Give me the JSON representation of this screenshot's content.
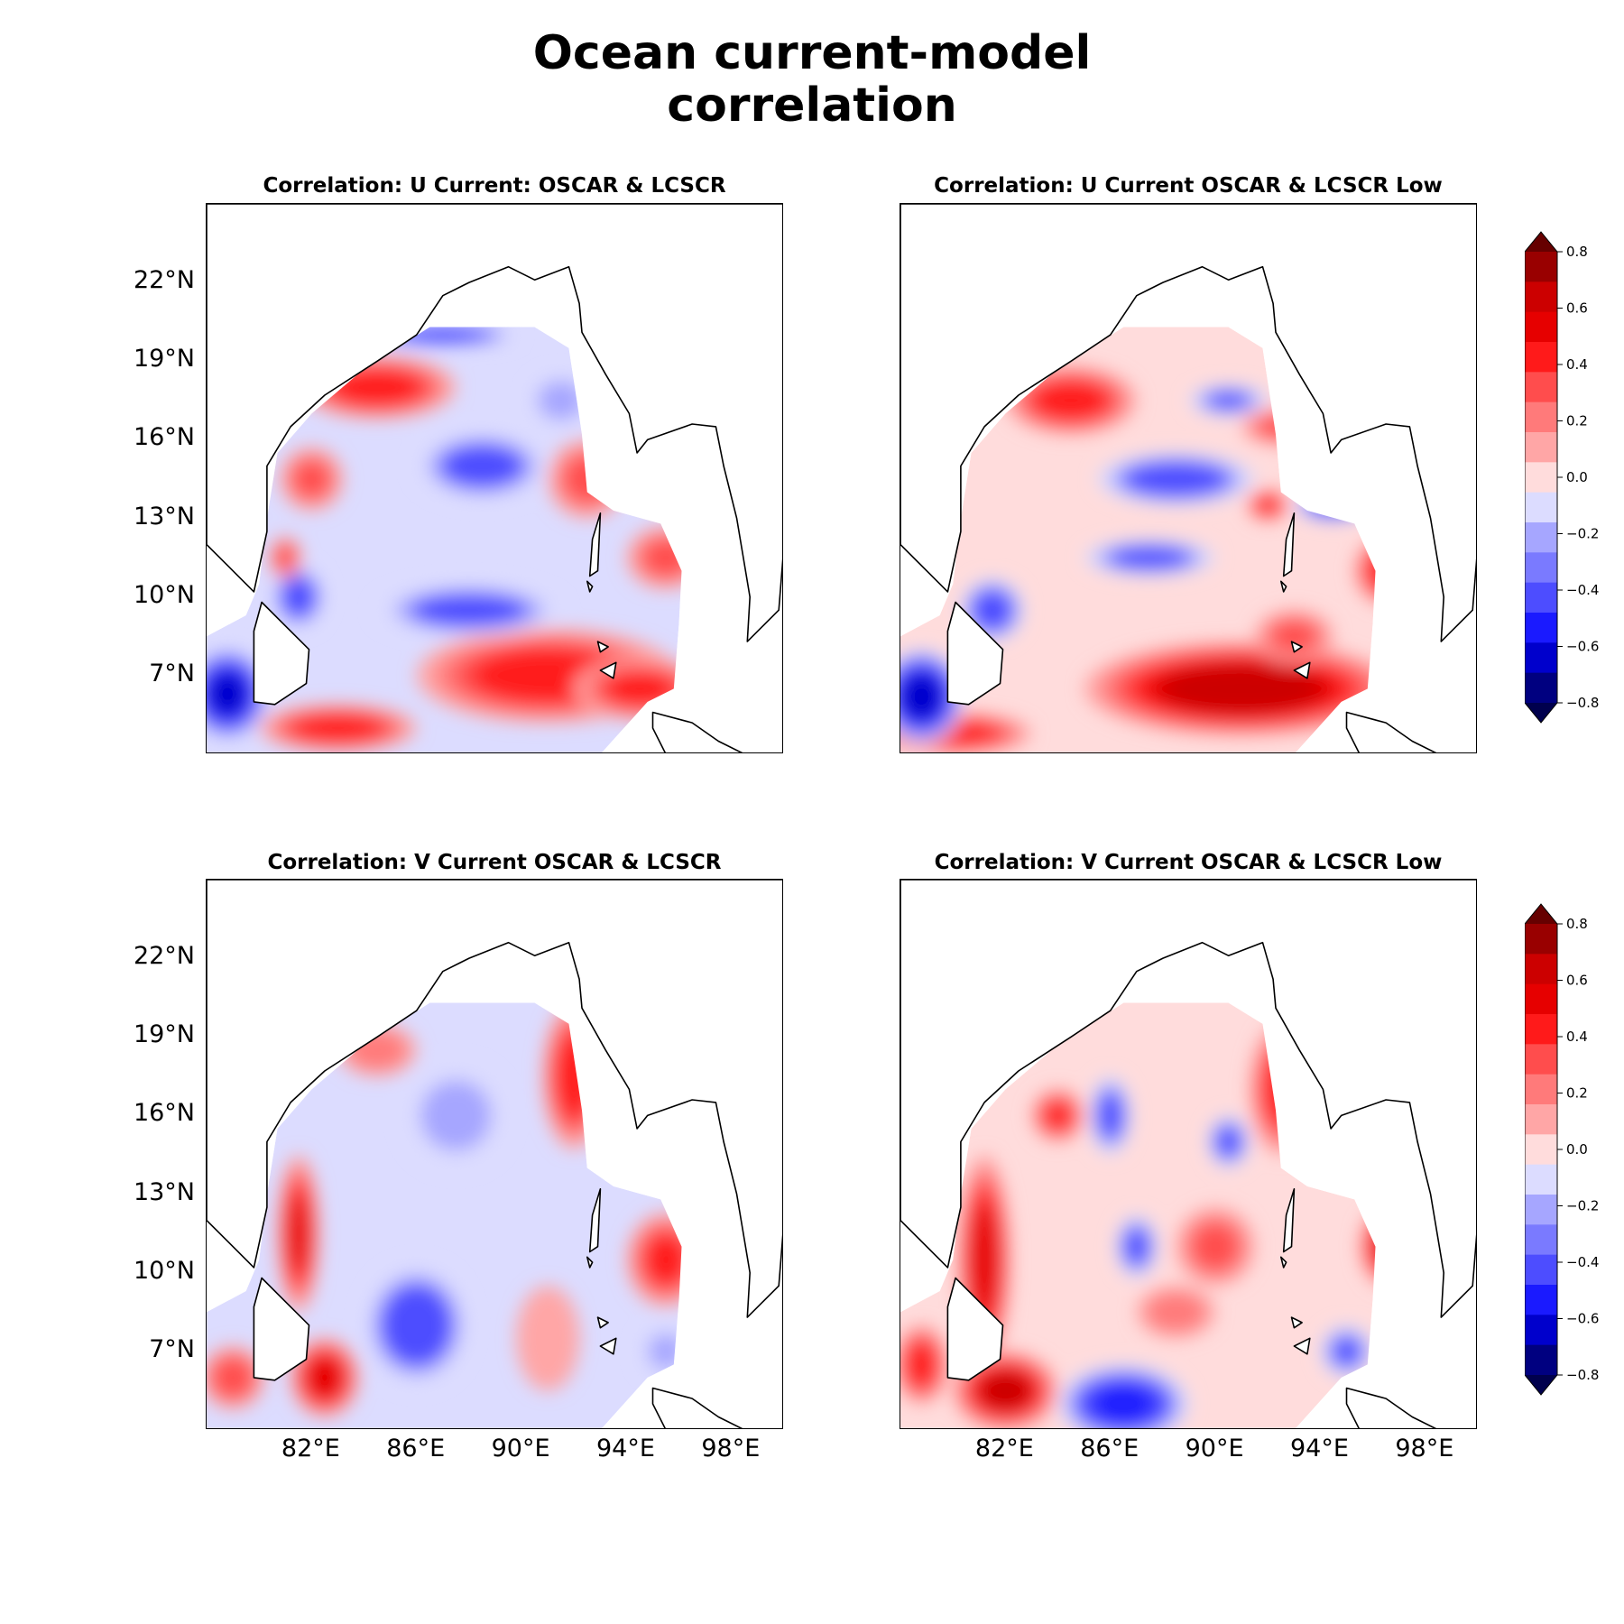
{
  "figure": {
    "title_line1": "Ocean current-model",
    "title_line2": "correlation"
  },
  "panels": [
    {
      "title": "Correlation: U Current: OSCAR & LCSCR"
    },
    {
      "title": "Correlation: U Current OSCAR & LCSCR Low"
    },
    {
      "title": "Correlation: V Current OSCAR & LCSCR"
    },
    {
      "title": "Correlation: V Current OSCAR & LCSCR Low"
    }
  ],
  "chart_data": {
    "type": "heatmap",
    "lat_ticks": [
      "22°N",
      "19°N",
      "16°N",
      "13°N",
      "10°N",
      "7°N"
    ],
    "lon_ticks": [
      "82°E",
      "86°E",
      "90°E",
      "94°E",
      "98°E"
    ],
    "lat_range": [
      4.0,
      25.0
    ],
    "lon_range": [
      78.0,
      100.0
    ],
    "colormap": "seismic",
    "colorbar_ticks": [
      "0.8",
      "0.6",
      "0.4",
      "0.2",
      "0.0",
      "−0.2",
      "−0.4",
      "−0.6",
      "−0.8"
    ],
    "levels": [
      -0.8,
      -0.7,
      -0.6,
      -0.5,
      -0.4,
      -0.3,
      -0.2,
      -0.1,
      0.0,
      0.1,
      0.2,
      0.3,
      0.4,
      0.5,
      0.6,
      0.7,
      0.8
    ],
    "level_colors": [
      "#00004d",
      "#000080",
      "#0000cc",
      "#1a1aff",
      "#4d4dff",
      "#7a7aff",
      "#a6a6ff",
      "#dcdcff",
      "#ffdcdc",
      "#ffa6a6",
      "#ff7a7a",
      "#ff4d4d",
      "#ff1a1a",
      "#e60000",
      "#cc0000",
      "#990000",
      "#660000"
    ],
    "fields": [
      {
        "name": "U OSCAR & LCSCR",
        "features": [
          {
            "lon": 84.5,
            "lat": 18.0,
            "value": 0.45,
            "rx": 3.0,
            "ry": 1.2
          },
          {
            "lon": 91.0,
            "lat": 7.0,
            "value": 0.45,
            "rx": 5.0,
            "ry": 1.8
          },
          {
            "lon": 94.5,
            "lat": 6.5,
            "value": 0.4,
            "rx": 2.5,
            "ry": 1.2
          },
          {
            "lon": 83.0,
            "lat": 5.0,
            "value": 0.45,
            "rx": 3.0,
            "ry": 0.9
          },
          {
            "lon": 88.5,
            "lat": 15.0,
            "value": -0.35,
            "rx": 2.5,
            "ry": 1.3
          },
          {
            "lon": 88.0,
            "lat": 9.5,
            "value": -0.35,
            "rx": 3.5,
            "ry": 1.0
          },
          {
            "lon": 78.8,
            "lat": 6.3,
            "value": -0.6,
            "rx": 1.6,
            "ry": 1.8
          },
          {
            "lon": 81.5,
            "lat": 10.0,
            "value": -0.4,
            "rx": 1.0,
            "ry": 1.2
          },
          {
            "lon": 92.5,
            "lat": 14.5,
            "value": 0.3,
            "rx": 1.5,
            "ry": 1.5
          },
          {
            "lon": 95.5,
            "lat": 11.5,
            "value": 0.3,
            "rx": 1.5,
            "ry": 1.2
          },
          {
            "lon": 87.0,
            "lat": 20.0,
            "value": -0.5,
            "rx": 2.8,
            "ry": 0.4
          },
          {
            "lon": 91.5,
            "lat": 17.5,
            "value": -0.25,
            "rx": 1.2,
            "ry": 1.0
          },
          {
            "lon": 82.0,
            "lat": 14.5,
            "value": 0.3,
            "rx": 1.2,
            "ry": 1.2
          },
          {
            "lon": 81.0,
            "lat": 11.5,
            "value": 0.35,
            "rx": 0.6,
            "ry": 0.8
          }
        ]
      },
      {
        "name": "U OSCAR & LCSCR Low",
        "features": [
          {
            "lon": 84.5,
            "lat": 17.5,
            "value": 0.45,
            "rx": 2.5,
            "ry": 1.3
          },
          {
            "lon": 91.0,
            "lat": 6.5,
            "value": 0.65,
            "rx": 6.0,
            "ry": 1.8
          },
          {
            "lon": 80.0,
            "lat": 4.8,
            "value": 0.45,
            "rx": 3.0,
            "ry": 0.8
          },
          {
            "lon": 88.5,
            "lat": 14.5,
            "value": -0.4,
            "rx": 3.0,
            "ry": 1.0
          },
          {
            "lon": 78.8,
            "lat": 6.2,
            "value": -0.65,
            "rx": 1.6,
            "ry": 1.8
          },
          {
            "lon": 81.5,
            "lat": 9.5,
            "value": -0.4,
            "rx": 1.2,
            "ry": 1.2
          },
          {
            "lon": 92.5,
            "lat": 16.5,
            "value": 0.3,
            "rx": 1.5,
            "ry": 0.7
          },
          {
            "lon": 96.5,
            "lat": 11.0,
            "value": 0.45,
            "rx": 1.2,
            "ry": 1.3
          },
          {
            "lon": 92.0,
            "lat": 13.5,
            "value": 0.4,
            "rx": 0.8,
            "ry": 0.6
          },
          {
            "lon": 90.5,
            "lat": 17.5,
            "value": -0.3,
            "rx": 1.5,
            "ry": 0.6
          },
          {
            "lon": 87.5,
            "lat": 11.5,
            "value": -0.35,
            "rx": 2.5,
            "ry": 0.7
          },
          {
            "lon": 94.5,
            "lat": 13.5,
            "value": -0.45,
            "rx": 1.5,
            "ry": 0.6
          },
          {
            "lon": 93.0,
            "lat": 8.5,
            "value": 0.3,
            "rx": 1.5,
            "ry": 1.0
          }
        ]
      },
      {
        "name": "V OSCAR & LCSCR",
        "features": [
          {
            "lon": 92.0,
            "lat": 17.5,
            "value": 0.45,
            "rx": 1.2,
            "ry": 2.8
          },
          {
            "lon": 81.5,
            "lat": 11.5,
            "value": 0.5,
            "rx": 0.8,
            "ry": 3.0
          },
          {
            "lon": 82.5,
            "lat": 6.0,
            "value": 0.55,
            "rx": 1.3,
            "ry": 1.5
          },
          {
            "lon": 79.0,
            "lat": 6.0,
            "value": 0.35,
            "rx": 1.2,
            "ry": 1.2
          },
          {
            "lon": 95.5,
            "lat": 10.5,
            "value": 0.4,
            "rx": 1.5,
            "ry": 1.8
          },
          {
            "lon": 86.0,
            "lat": 8.0,
            "value": -0.4,
            "rx": 2.0,
            "ry": 2.3
          },
          {
            "lon": 87.5,
            "lat": 16.0,
            "value": -0.2,
            "rx": 2.0,
            "ry": 2.0
          },
          {
            "lon": 84.5,
            "lat": 18.5,
            "value": 0.25,
            "rx": 1.5,
            "ry": 1.0
          },
          {
            "lon": 91.0,
            "lat": 7.5,
            "value": 0.15,
            "rx": 1.2,
            "ry": 2.0
          },
          {
            "lon": 95.5,
            "lat": 7.0,
            "value": -0.2,
            "rx": 1.0,
            "ry": 1.0
          }
        ]
      },
      {
        "name": "V OSCAR & LCSCR Low",
        "features": [
          {
            "lon": 81.2,
            "lat": 10.5,
            "value": 0.55,
            "rx": 1.0,
            "ry": 4.0
          },
          {
            "lon": 82.0,
            "lat": 5.5,
            "value": 0.6,
            "rx": 2.0,
            "ry": 1.5
          },
          {
            "lon": 92.5,
            "lat": 17.0,
            "value": 0.4,
            "rx": 1.2,
            "ry": 2.5
          },
          {
            "lon": 86.5,
            "lat": 5.0,
            "value": -0.5,
            "rx": 2.5,
            "ry": 1.5
          },
          {
            "lon": 96.5,
            "lat": 11.0,
            "value": 0.5,
            "rx": 1.0,
            "ry": 1.5
          },
          {
            "lon": 90.0,
            "lat": 11.0,
            "value": 0.3,
            "rx": 1.5,
            "ry": 1.5
          },
          {
            "lon": 86.0,
            "lat": 16.0,
            "value": -0.35,
            "rx": 0.8,
            "ry": 1.5
          },
          {
            "lon": 90.5,
            "lat": 15.0,
            "value": -0.35,
            "rx": 0.8,
            "ry": 1.0
          },
          {
            "lon": 87.0,
            "lat": 11.0,
            "value": -0.35,
            "rx": 0.8,
            "ry": 1.2
          },
          {
            "lon": 84.0,
            "lat": 16.0,
            "value": 0.4,
            "rx": 1.0,
            "ry": 1.0
          },
          {
            "lon": 95.0,
            "lat": 7.0,
            "value": -0.3,
            "rx": 1.0,
            "ry": 1.0
          },
          {
            "lon": 88.5,
            "lat": 8.5,
            "value": 0.25,
            "rx": 1.5,
            "ry": 1.0
          },
          {
            "lon": 78.8,
            "lat": 6.5,
            "value": 0.45,
            "rx": 1.0,
            "ry": 1.5
          }
        ]
      }
    ]
  }
}
